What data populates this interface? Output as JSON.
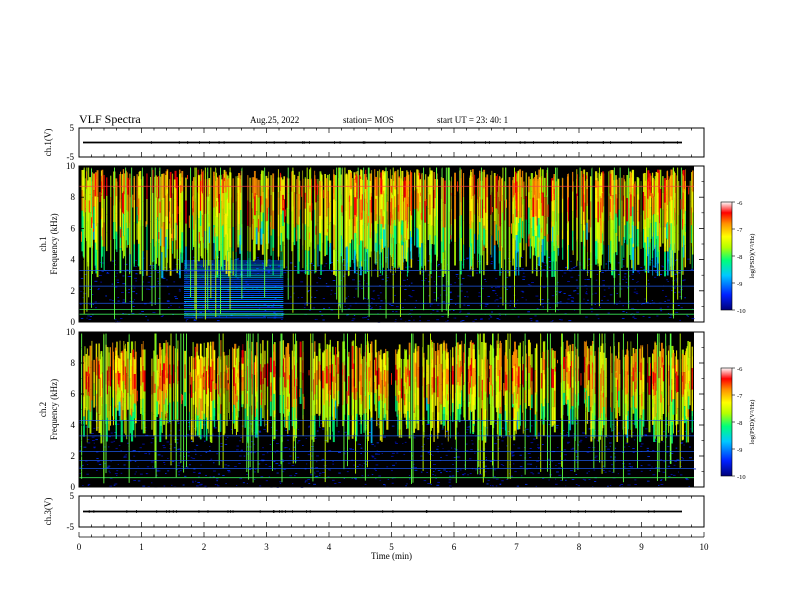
{
  "header": {
    "title": "VLF Spectra",
    "date": "Aug.25, 2022",
    "station": "station= MOS",
    "start_ut": "start  UT  =   23: 40: 1"
  },
  "chart_data": [
    {
      "type": "line",
      "panel": "ch1-waveform",
      "ylabel": "ch.1(V)",
      "ylim": [
        -5,
        5
      ],
      "yticks": [
        "5",
        "-5"
      ],
      "series": [
        {
          "values_V": 0
        }
      ]
    },
    {
      "type": "heatmap",
      "panel": "ch1-spectrogram",
      "ylabel": "ch.1\nFrequency (kHz)",
      "ylim": [
        0,
        10
      ],
      "yticks": [
        "0",
        "2",
        "4",
        "6",
        "8",
        "10"
      ],
      "colorbar": {
        "label": "log(PSD)(V²/Hz)",
        "range": [
          -10,
          -6
        ],
        "ticks": [
          "-6",
          "-7",
          "-8",
          "-9",
          "-10"
        ]
      },
      "features": {
        "strong_noise_band_kHz": [
          4,
          10
        ],
        "interference_block": {
          "t_min": [
            1.68,
            3.27
          ],
          "f_kHz": [
            0.3,
            4.0
          ]
        },
        "persistent_lines_kHz": [
          0.5,
          0.8,
          1.2,
          2.3,
          3.3,
          8.7
        ]
      }
    },
    {
      "type": "heatmap",
      "panel": "ch2-spectrogram",
      "ylabel": "ch.2\nFrequency (kHz)",
      "ylim": [
        0,
        10
      ],
      "yticks": [
        "0",
        "2",
        "4",
        "6",
        "8",
        "10"
      ],
      "colorbar": {
        "label": "log(PSD)(V²/Hz)",
        "range": [
          -10,
          -6
        ],
        "ticks": [
          "-6",
          "-7",
          "-8",
          "-9",
          "-10"
        ]
      },
      "features": {
        "strong_noise_band_kHz": [
          4,
          9.5
        ],
        "persistent_lines_kHz": [
          0.6,
          1.2,
          1.7,
          2.3,
          3.3,
          4.3
        ]
      }
    },
    {
      "type": "line",
      "panel": "ch3-waveform",
      "ylabel": "ch.3(V)",
      "ylim": [
        -5,
        5
      ],
      "yticks": [
        "5",
        "-5"
      ],
      "series": [
        {
          "values_V": 0
        }
      ]
    }
  ],
  "xaxis": {
    "label": "Time (min)",
    "range": [
      0,
      10
    ],
    "ticks": [
      "0",
      "1",
      "2",
      "3",
      "4",
      "5",
      "6",
      "7",
      "8",
      "9",
      "10"
    ],
    "data_end": 9.84
  },
  "colors": {
    "background": "#000000",
    "colormap": [
      "#00007a",
      "#0020ff",
      "#00c8ff",
      "#00ff7a",
      "#b4ff00",
      "#ffff00",
      "#ff9000",
      "#ff0000",
      "#ffffff"
    ]
  }
}
